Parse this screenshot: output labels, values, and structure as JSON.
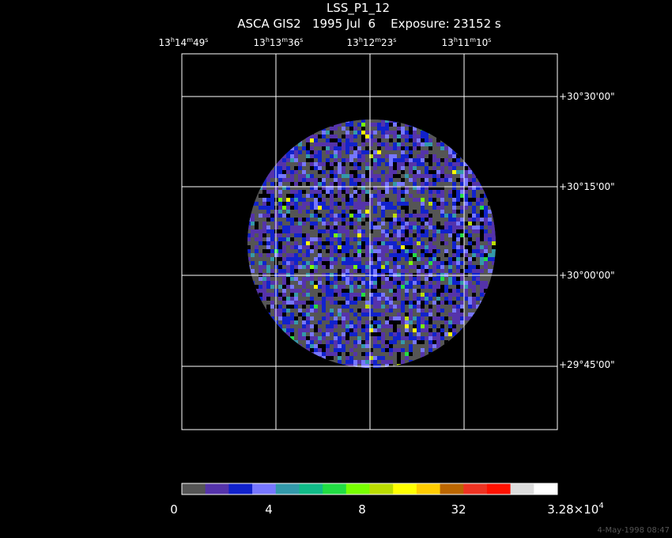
{
  "header": {
    "title": "LSS_P1_12",
    "subtitle": "ASCA GIS2   1995 Jul  6    Exposure: 23152 s"
  },
  "ra_labels": [
    [
      "13",
      "h",
      "14",
      "m",
      "49",
      "s"
    ],
    [
      "13",
      "h",
      "13",
      "m",
      "36",
      "s"
    ],
    [
      "13",
      "h",
      "12",
      "m",
      "23",
      "s"
    ],
    [
      "13",
      "h",
      "11",
      "m",
      "10",
      "s"
    ]
  ],
  "dec_labels": [
    "+30°30'00\"",
    "+30°15'00\"",
    "+30°00'00\"",
    "+29°45'00\""
  ],
  "colorbar": {
    "colors": [
      "#555555",
      "#5533aa",
      "#1122cc",
      "#7777ff",
      "#3399aa",
      "#11bb88",
      "#22dd44",
      "#77ff00",
      "#bbdd00",
      "#ffff00",
      "#ffcc00",
      "#bb6600",
      "#ee3322",
      "#ff1100",
      "#dddddd",
      "#ffffff"
    ],
    "labels": [
      [
        "0"
      ],
      [
        "4"
      ],
      [
        "8"
      ],
      [
        "32"
      ],
      [
        "3.28×10",
        "4"
      ]
    ]
  },
  "timestamp": "4-May-1998 08:47"
}
